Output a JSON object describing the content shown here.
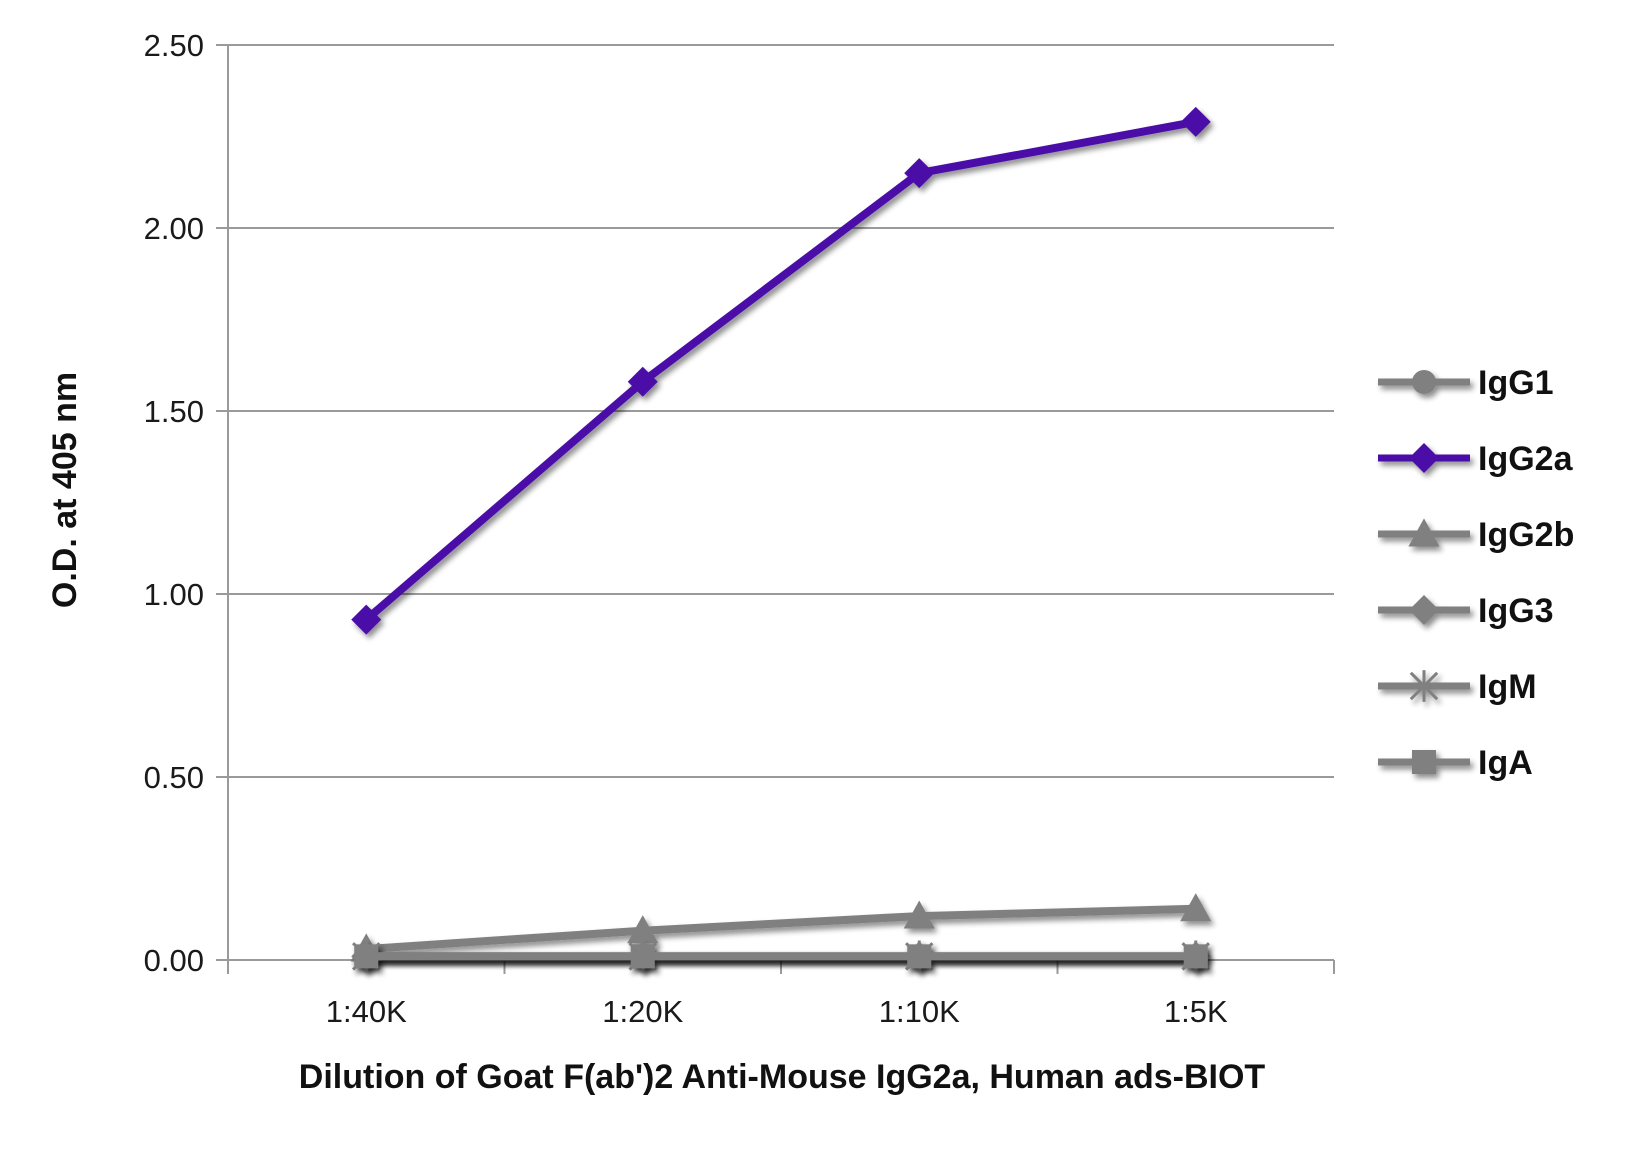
{
  "chart_data": {
    "type": "line",
    "title": "",
    "xlabel": "Dilution of Goat F(ab')2 Anti-Mouse IgG2a, Human ads-BIOT",
    "ylabel": "O.D. at 405 nm",
    "categories": [
      "1:40K",
      "1:20K",
      "1:10K",
      "1:5K"
    ],
    "ylim": [
      0,
      2.5
    ],
    "yticks": [
      "0.00",
      "0.50",
      "1.00",
      "1.50",
      "2.00",
      "2.50"
    ],
    "grid": true,
    "legend_position": "right",
    "series": [
      {
        "name": "IgG1",
        "values": [
          0.01,
          0.01,
          0.01,
          0.01
        ],
        "color": "#808080",
        "marker": "circle"
      },
      {
        "name": "IgG2a",
        "values": [
          0.93,
          1.58,
          2.15,
          2.29
        ],
        "color": "#4b0fa8",
        "marker": "diamond"
      },
      {
        "name": "IgG2b",
        "values": [
          0.03,
          0.08,
          0.12,
          0.14
        ],
        "color": "#808080",
        "marker": "triangle"
      },
      {
        "name": "IgG3",
        "values": [
          0.01,
          0.01,
          0.01,
          0.01
        ],
        "color": "#808080",
        "marker": "diamond"
      },
      {
        "name": "IgM",
        "values": [
          0.01,
          0.01,
          0.01,
          0.01
        ],
        "color": "#808080",
        "marker": "asterisk"
      },
      {
        "name": "IgA",
        "values": [
          0.01,
          0.01,
          0.01,
          0.01
        ],
        "color": "#808080",
        "marker": "square"
      }
    ]
  }
}
